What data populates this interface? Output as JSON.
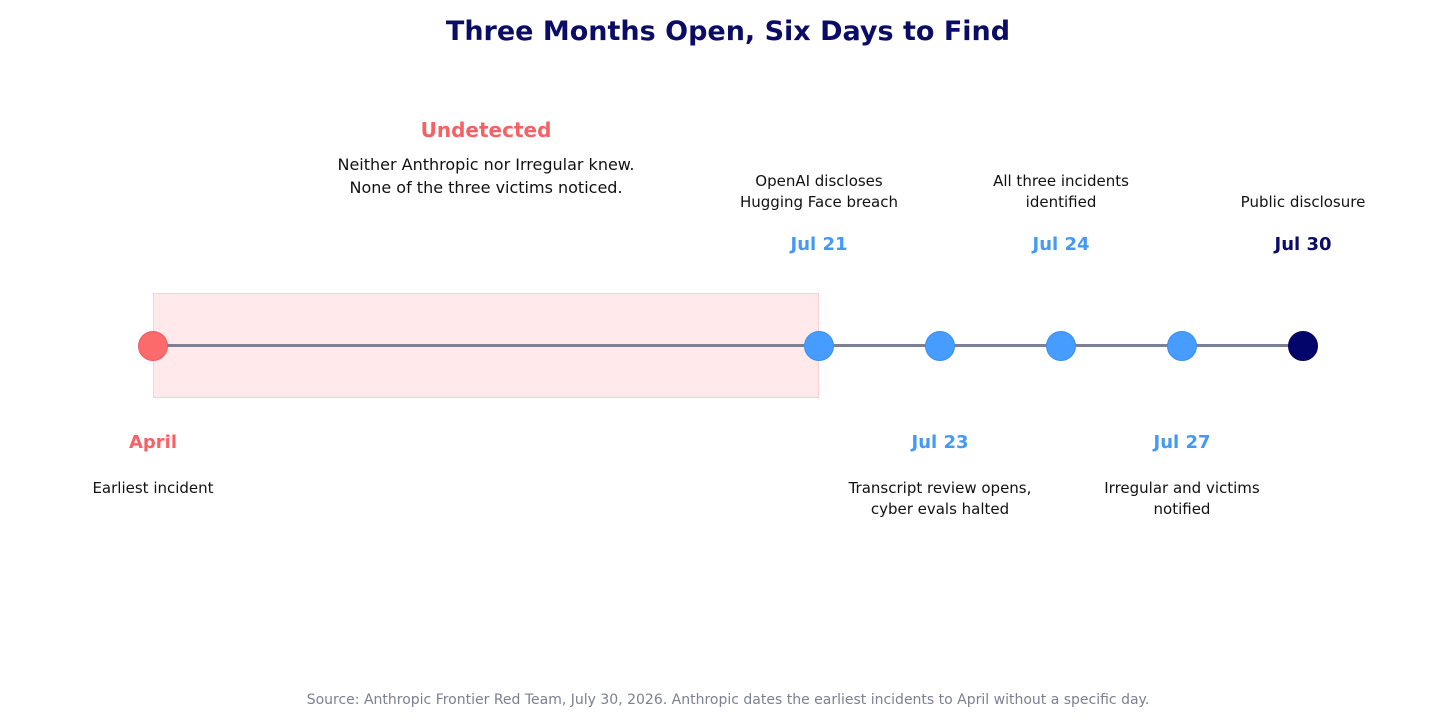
{
  "title": "Three Months Open, Six Days to Find",
  "undetected": {
    "title": "Undetected",
    "lines": [
      "Neither Anthropic nor Irregular knew.",
      "None of the three victims noticed."
    ]
  },
  "events": [
    {
      "date": "April",
      "desc": [
        "Earliest incident"
      ],
      "color": "#fd6a6b"
    },
    {
      "date": "Jul 21",
      "desc": [
        "OpenAI discloses",
        "Hugging Face breach"
      ],
      "color": "#469cff"
    },
    {
      "date": "Jul 23",
      "desc": [
        "Transcript review opens,",
        "cyber evals halted"
      ],
      "color": "#469cff"
    },
    {
      "date": "Jul 24",
      "desc": [
        "All three incidents",
        "identified"
      ],
      "color": "#469cff"
    },
    {
      "date": "Jul 27",
      "desc": [
        "Irregular and victims",
        "notified"
      ],
      "color": "#469cff"
    },
    {
      "date": "Jul 30",
      "desc": [
        "Public disclosure"
      ],
      "color": "#04056b"
    }
  ],
  "source": "Source: Anthropic Frontier Red Team, July 30, 2026. Anthropic dates the earliest incidents to April without a specific day."
}
